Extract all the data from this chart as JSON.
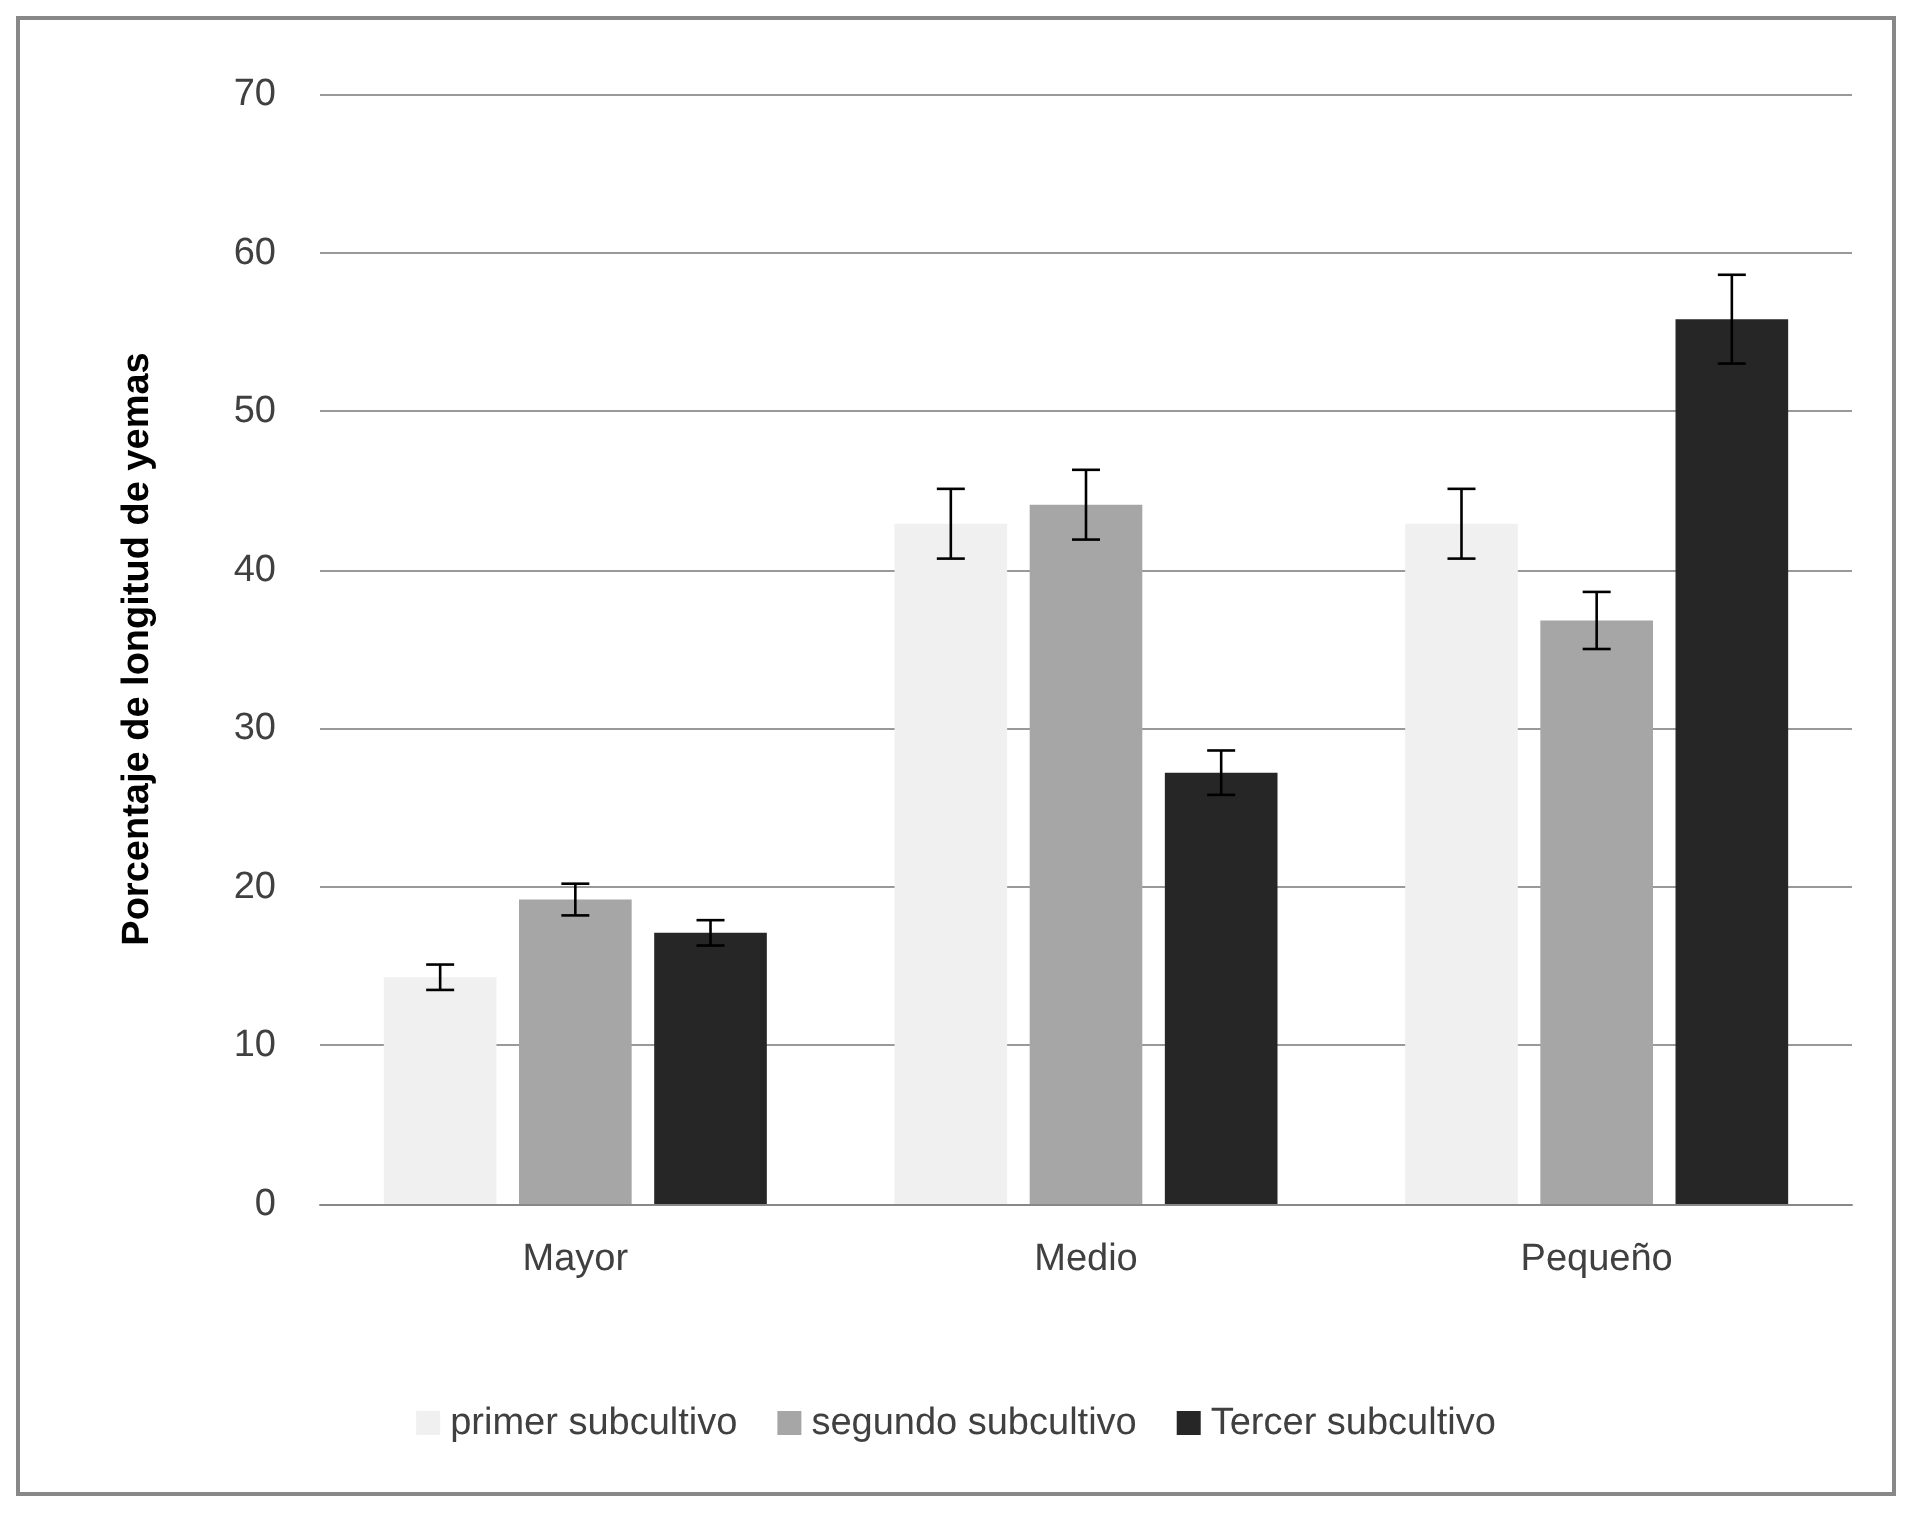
{
  "chart_data": {
    "type": "bar",
    "ylabel": "Porcentaje de longitud de yemas",
    "categories": [
      "Mayor",
      "Medio",
      "Pequeño"
    ],
    "series": [
      {
        "name": "primer subcultivo",
        "color": "#f0f0f0",
        "values": [
          14.3,
          42.9,
          42.9
        ],
        "errors": [
          0.8,
          2.2,
          2.2
        ]
      },
      {
        "name": "segundo subcultivo",
        "color": "#a6a6a6",
        "values": [
          19.2,
          44.1,
          36.8
        ],
        "errors": [
          1.0,
          2.2,
          1.8
        ]
      },
      {
        "name": "Tercer subcultivo",
        "color": "#262626",
        "values": [
          17.1,
          27.2,
          55.8
        ],
        "errors": [
          0.8,
          1.4,
          2.8
        ]
      }
    ],
    "ylim": [
      0,
      70
    ],
    "yticks": [
      0,
      10,
      20,
      30,
      40,
      50,
      60,
      70
    ],
    "grid": "y",
    "legend": "bottom"
  }
}
